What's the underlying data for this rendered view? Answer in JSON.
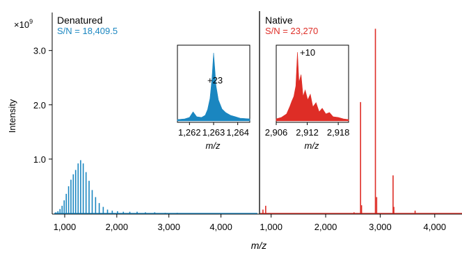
{
  "chart_data": [
    {
      "type": "line",
      "panel": "Denatured",
      "title": "Denatured",
      "annotation": "S/N = 18,409.5",
      "color": "#1a86c0",
      "xlabel": "m/z",
      "ylabel": "Intensity",
      "y_multiplier": "×10",
      "y_multiplier_exp": "9",
      "xlim": [
        800,
        4700
      ],
      "ylim": [
        0,
        3.7
      ],
      "x_ticks": [
        1000,
        2000,
        3000,
        4000
      ],
      "x_tick_labels": [
        "1,000",
        "2,000",
        "3,000",
        "4,000"
      ],
      "y_ticks": [
        1.0,
        2.0,
        3.0
      ],
      "y_tick_labels": [
        "1.0",
        "2.0",
        "3.0"
      ],
      "peaks": [
        {
          "x": 830,
          "y": 0.02
        },
        {
          "x": 870,
          "y": 0.04
        },
        {
          "x": 910,
          "y": 0.08
        },
        {
          "x": 950,
          "y": 0.14
        },
        {
          "x": 990,
          "y": 0.24
        },
        {
          "x": 1030,
          "y": 0.36
        },
        {
          "x": 1075,
          "y": 0.5
        },
        {
          "x": 1120,
          "y": 0.62
        },
        {
          "x": 1165,
          "y": 0.72
        },
        {
          "x": 1210,
          "y": 0.8
        },
        {
          "x": 1258,
          "y": 0.92
        },
        {
          "x": 1306,
          "y": 0.98
        },
        {
          "x": 1356,
          "y": 0.92
        },
        {
          "x": 1410,
          "y": 0.76
        },
        {
          "x": 1468,
          "y": 0.6
        },
        {
          "x": 1528,
          "y": 0.43
        },
        {
          "x": 1593,
          "y": 0.3
        },
        {
          "x": 1663,
          "y": 0.19
        },
        {
          "x": 1740,
          "y": 0.12
        },
        {
          "x": 1822,
          "y": 0.07
        },
        {
          "x": 1913,
          "y": 0.05
        },
        {
          "x": 2014,
          "y": 0.04
        },
        {
          "x": 2126,
          "y": 0.03
        },
        {
          "x": 2250,
          "y": 0.03
        },
        {
          "x": 2390,
          "y": 0.03
        },
        {
          "x": 2550,
          "y": 0.02
        },
        {
          "x": 2728,
          "y": 0.02
        },
        {
          "x": 2930,
          "y": 0.01
        },
        {
          "x": 3160,
          "y": 0.01
        }
      ],
      "inset": {
        "label": "+23",
        "xlabel": "m/z",
        "xlim": [
          1261.5,
          1264.5
        ],
        "x_ticks": [
          1262,
          1263,
          1264
        ],
        "x_tick_labels": [
          "1,262",
          "1,263",
          "1,264"
        ],
        "profile": [
          {
            "x": 1261.5,
            "y": 0.02
          },
          {
            "x": 1261.8,
            "y": 0.03
          },
          {
            "x": 1262.0,
            "y": 0.05
          },
          {
            "x": 1262.15,
            "y": 0.13
          },
          {
            "x": 1262.3,
            "y": 0.06
          },
          {
            "x": 1262.5,
            "y": 0.05
          },
          {
            "x": 1262.65,
            "y": 0.08
          },
          {
            "x": 1262.75,
            "y": 0.16
          },
          {
            "x": 1262.85,
            "y": 0.32
          },
          {
            "x": 1262.93,
            "y": 0.6
          },
          {
            "x": 1263.0,
            "y": 0.97
          },
          {
            "x": 1263.05,
            "y": 0.75
          },
          {
            "x": 1263.1,
            "y": 0.5
          },
          {
            "x": 1263.2,
            "y": 0.3
          },
          {
            "x": 1263.35,
            "y": 0.17
          },
          {
            "x": 1263.5,
            "y": 0.12
          },
          {
            "x": 1263.7,
            "y": 0.08
          },
          {
            "x": 1263.9,
            "y": 0.06
          },
          {
            "x": 1264.1,
            "y": 0.04
          },
          {
            "x": 1264.5,
            "y": 0.03
          }
        ]
      }
    },
    {
      "type": "line",
      "panel": "Native",
      "title": "Native",
      "annotation": "S/N = 23,270",
      "color": "#de2d26",
      "xlabel": "m/z",
      "xlim": [
        800,
        4500
      ],
      "ylim": [
        0,
        3.7
      ],
      "x_ticks": [
        1000,
        2000,
        3000,
        4000
      ],
      "x_tick_labels": [
        "1,000",
        "2,000",
        "3,000",
        "4,000"
      ],
      "peaks": [
        {
          "x": 850,
          "y": 0.07
        },
        {
          "x": 900,
          "y": 0.14
        },
        {
          "x": 2520,
          "y": 0.02
        },
        {
          "x": 2640,
          "y": 2.05
        },
        {
          "x": 2658,
          "y": 0.15
        },
        {
          "x": 2912,
          "y": 3.4
        },
        {
          "x": 2935,
          "y": 0.3
        },
        {
          "x": 3236,
          "y": 0.7
        },
        {
          "x": 3250,
          "y": 0.12
        },
        {
          "x": 3640,
          "y": 0.05
        }
      ],
      "inset": {
        "label": "+10",
        "xlabel": "m/z",
        "xlim": [
          2906,
          2920
        ],
        "x_ticks": [
          2906,
          2912,
          2918
        ],
        "x_tick_labels": [
          "2,906",
          "2,912",
          "2,918"
        ],
        "profile": [
          {
            "x": 2906.0,
            "y": 0.03
          },
          {
            "x": 2907.0,
            "y": 0.05
          },
          {
            "x": 2908.0,
            "y": 0.1
          },
          {
            "x": 2908.6,
            "y": 0.2
          },
          {
            "x": 2909.0,
            "y": 0.28
          },
          {
            "x": 2909.4,
            "y": 0.35
          },
          {
            "x": 2909.8,
            "y": 0.5
          },
          {
            "x": 2910.1,
            "y": 0.98
          },
          {
            "x": 2910.4,
            "y": 0.55
          },
          {
            "x": 2910.8,
            "y": 0.66
          },
          {
            "x": 2911.2,
            "y": 0.35
          },
          {
            "x": 2911.6,
            "y": 0.44
          },
          {
            "x": 2912.1,
            "y": 0.3
          },
          {
            "x": 2912.6,
            "y": 0.38
          },
          {
            "x": 2913.1,
            "y": 0.2
          },
          {
            "x": 2913.7,
            "y": 0.26
          },
          {
            "x": 2914.3,
            "y": 0.13
          },
          {
            "x": 2914.9,
            "y": 0.18
          },
          {
            "x": 2915.6,
            "y": 0.1
          },
          {
            "x": 2916.3,
            "y": 0.12
          },
          {
            "x": 2917.0,
            "y": 0.06
          },
          {
            "x": 2918.0,
            "y": 0.05
          },
          {
            "x": 2919.0,
            "y": 0.03
          },
          {
            "x": 2920.0,
            "y": 0.02
          }
        ]
      }
    }
  ],
  "shared_xlabel": "m/z"
}
